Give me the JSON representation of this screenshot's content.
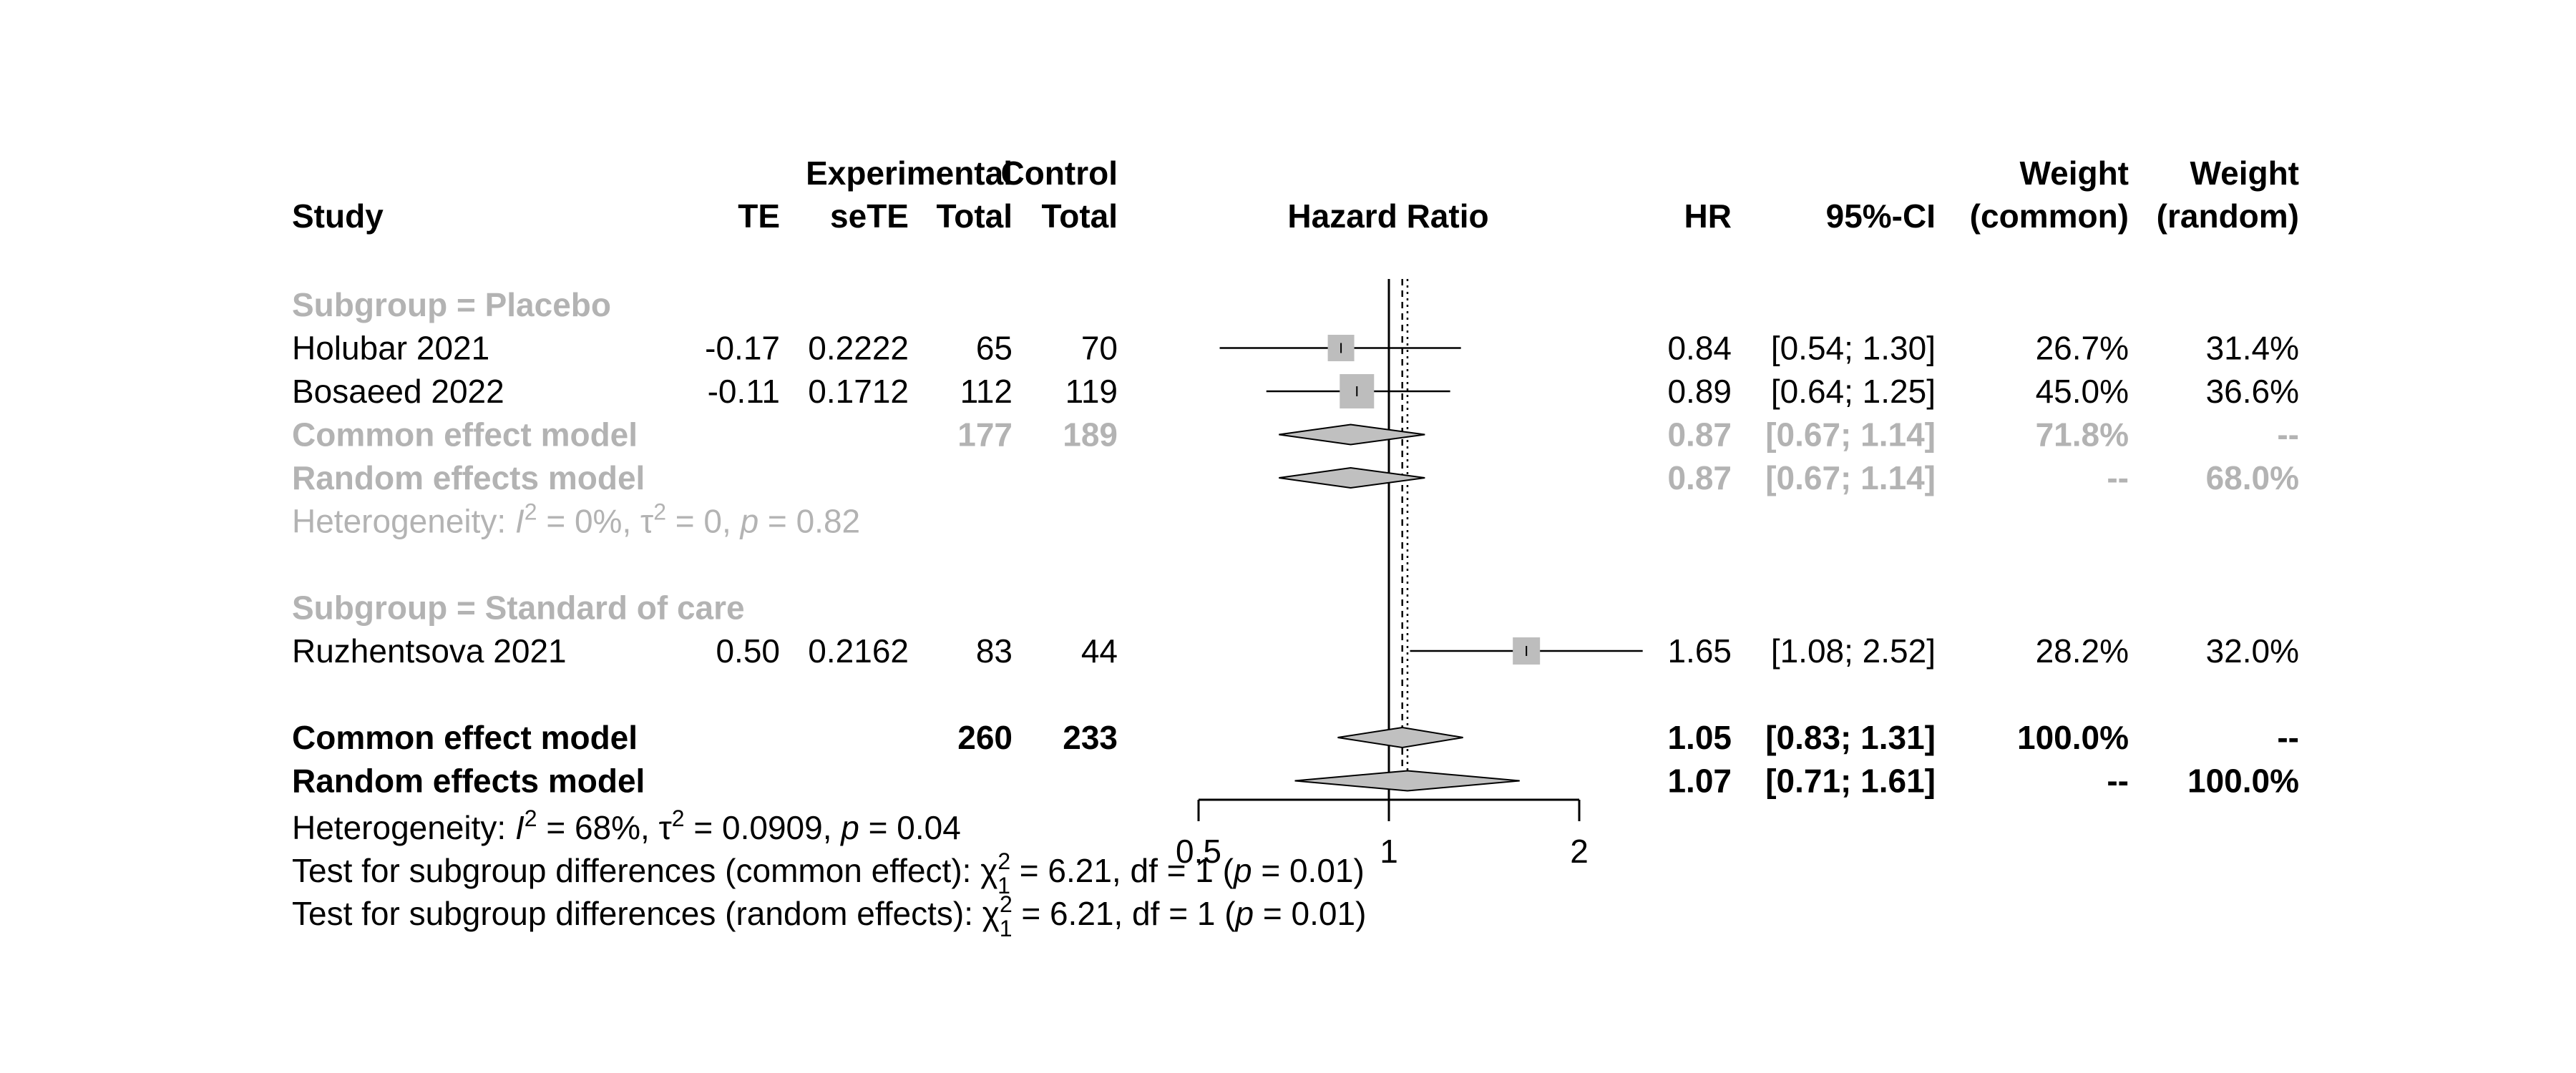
{
  "chart_data": {
    "type": "forest",
    "measure": "Hazard Ratio",
    "x_scale": "log",
    "xlim": [
      0.5,
      2
    ],
    "ticks": [
      "0.5",
      "1",
      "2"
    ],
    "reference_line": 1,
    "common_effect_line": 1.05,
    "random_effect_line": 1.07,
    "headers": {
      "study": "Study",
      "te": "TE",
      "sete": "seTE",
      "exp_top": "Experimental",
      "exp": "Total",
      "ctrl_top": "Control",
      "ctrl": "Total",
      "plot": "Hazard Ratio",
      "hr": "HR",
      "ci": "95%-CI",
      "wc_top": "Weight",
      "wc": "(common)",
      "wr_top": "Weight",
      "wr": "(random)"
    },
    "rows": [
      {
        "kind": "subgroup",
        "label": "Subgroup = Placebo"
      },
      {
        "kind": "study",
        "label": "Holubar 2021",
        "te": "-0.17",
        "sete": "0.2222",
        "exp": "65",
        "ctrl": "70",
        "hr_text": "0.84",
        "ci_text": "[0.54; 1.30]",
        "wc": "26.7%",
        "wr": "31.4%",
        "hr": 0.84,
        "lo": 0.54,
        "hi": 1.3,
        "weight": 26.7
      },
      {
        "kind": "study",
        "label": "Bosaeed 2022",
        "te": "-0.11",
        "sete": "0.1712",
        "exp": "112",
        "ctrl": "119",
        "hr_text": "0.89",
        "ci_text": "[0.64; 1.25]",
        "wc": "45.0%",
        "wr": "36.6%",
        "hr": 0.89,
        "lo": 0.64,
        "hi": 1.25,
        "weight": 45.0
      },
      {
        "kind": "sub_common",
        "label": "Common effect model",
        "exp": "177",
        "ctrl": "189",
        "hr_text": "0.87",
        "ci_text": "[0.67; 1.14]",
        "wc": "71.8%",
        "wr": "--",
        "hr": 0.87,
        "lo": 0.67,
        "hi": 1.14
      },
      {
        "kind": "sub_random",
        "label": "Random effects model",
        "hr_text": "0.87",
        "ci_text": "[0.67; 1.14]",
        "wc": "--",
        "wr": "68.0%",
        "hr": 0.87,
        "lo": 0.67,
        "hi": 1.14
      },
      {
        "kind": "sub_het",
        "label": "Heterogeneity: ",
        "i2": "I",
        "i2_rest": " = 0%, ",
        "tau": "τ",
        "tau_rest": " = 0, ",
        "p": "p",
        "p_rest": " = 0.82"
      },
      {
        "kind": "blank"
      },
      {
        "kind": "subgroup",
        "label": "Subgroup = Standard of care"
      },
      {
        "kind": "study",
        "label": "Ruzhentsova 2021",
        "te": "0.50",
        "sete": "0.2162",
        "exp": "83",
        "ctrl": "44",
        "hr_text": "1.65",
        "ci_text": "[1.08; 2.52]",
        "wc": "28.2%",
        "wr": "32.0%",
        "hr": 1.65,
        "lo": 1.08,
        "hi": 2.52,
        "weight": 28.2
      },
      {
        "kind": "blank"
      },
      {
        "kind": "overall_common",
        "label": "Common effect model",
        "exp": "260",
        "ctrl": "233",
        "hr_text": "1.05",
        "ci_text": "[0.83; 1.31]",
        "wc": "100.0%",
        "wr": "--",
        "hr": 1.05,
        "lo": 0.83,
        "hi": 1.31
      },
      {
        "kind": "overall_random",
        "label": "Random effects model",
        "hr_text": "1.07",
        "ci_text": "[0.71; 1.61]",
        "wc": "--",
        "wr": "100.0%",
        "hr": 1.07,
        "lo": 0.71,
        "hi": 1.61
      }
    ],
    "footer": {
      "het_label": "Heterogeneity: ",
      "het_i2": "I",
      "het_i2_rest": " = 68%, ",
      "het_tau": "τ",
      "het_tau_rest": " = 0.0909, ",
      "het_p": "p",
      "het_p_rest": " = 0.04",
      "test_common_label": "Test for subgroup differences (common effect): ",
      "test_common_chi": "χ",
      "test_common_rest": " = 6.21, df = 1 (",
      "test_common_p": "p",
      "test_common_p_rest": " = 0.01)",
      "test_random_label": "Test for subgroup differences (random effects): ",
      "test_random_chi": "χ",
      "test_random_rest": " = 6.21, df = 1 (",
      "test_random_p": "p",
      "test_random_p_rest": " = 0.01)",
      "sup_two": "2",
      "sub_one": "1"
    },
    "colors": {
      "text": "#000000",
      "subgroup_text": "#b3b3b3",
      "square": "#bdbdbd",
      "diamond_fill": "#c0c0c0",
      "line": "#000000"
    }
  }
}
